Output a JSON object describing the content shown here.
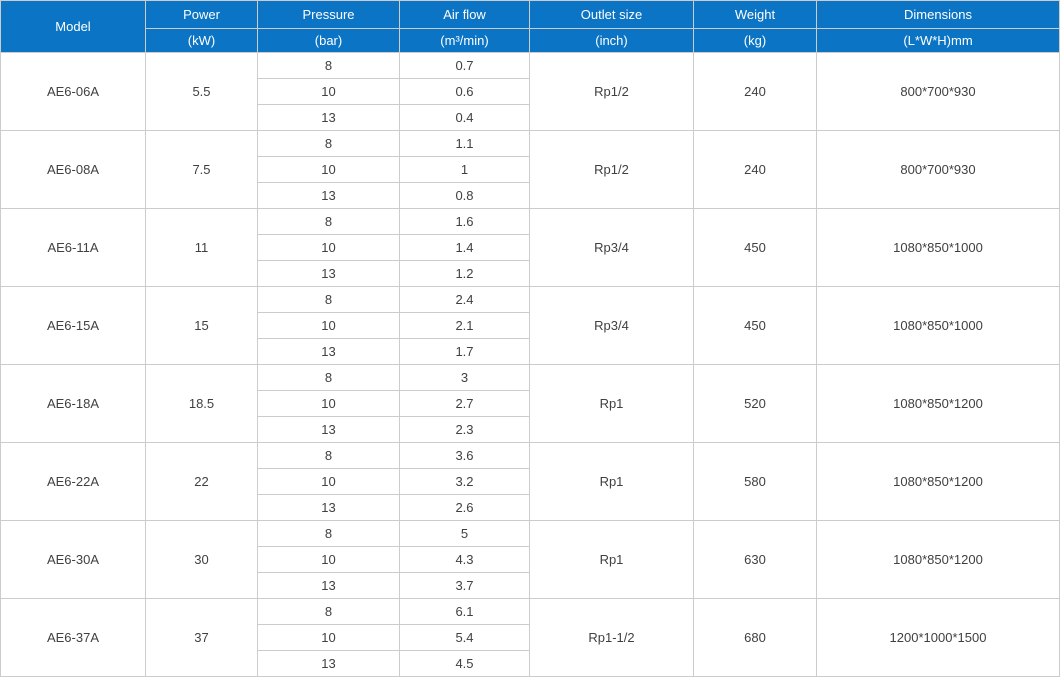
{
  "chart_data": {
    "type": "table",
    "columns": [
      "Model",
      "Power (kW)",
      "Pressure (bar)",
      "Air flow (m³/min)",
      "Outlet size (inch)",
      "Weight (kg)",
      "Dimensions (L*W*H)mm"
    ],
    "rows": [
      [
        "AE6-06A",
        "5.5",
        "8",
        "0.7",
        "Rp1/2",
        "240",
        "800*700*930"
      ],
      [
        "AE6-06A",
        "5.5",
        "10",
        "0.6",
        "Rp1/2",
        "240",
        "800*700*930"
      ],
      [
        "AE6-06A",
        "5.5",
        "13",
        "0.4",
        "Rp1/2",
        "240",
        "800*700*930"
      ],
      [
        "AE6-08A",
        "7.5",
        "8",
        "1.1",
        "Rp1/2",
        "240",
        "800*700*930"
      ],
      [
        "AE6-08A",
        "7.5",
        "10",
        "1",
        "Rp1/2",
        "240",
        "800*700*930"
      ],
      [
        "AE6-08A",
        "7.5",
        "13",
        "0.8",
        "Rp1/2",
        "240",
        "800*700*930"
      ],
      [
        "AE6-11A",
        "11",
        "8",
        "1.6",
        "Rp3/4",
        "450",
        "1080*850*1000"
      ],
      [
        "AE6-11A",
        "11",
        "10",
        "1.4",
        "Rp3/4",
        "450",
        "1080*850*1000"
      ],
      [
        "AE6-11A",
        "11",
        "13",
        "1.2",
        "Rp3/4",
        "450",
        "1080*850*1000"
      ],
      [
        "AE6-15A",
        "15",
        "8",
        "2.4",
        "Rp3/4",
        "450",
        "1080*850*1000"
      ],
      [
        "AE6-15A",
        "15",
        "10",
        "2.1",
        "Rp3/4",
        "450",
        "1080*850*1000"
      ],
      [
        "AE6-15A",
        "15",
        "13",
        "1.7",
        "Rp3/4",
        "450",
        "1080*850*1000"
      ],
      [
        "AE6-18A",
        "18.5",
        "8",
        "3",
        "Rp1",
        "520",
        "1080*850*1200"
      ],
      [
        "AE6-18A",
        "18.5",
        "10",
        "2.7",
        "Rp1",
        "520",
        "1080*850*1200"
      ],
      [
        "AE6-18A",
        "18.5",
        "13",
        "2.3",
        "Rp1",
        "520",
        "1080*850*1200"
      ],
      [
        "AE6-22A",
        "22",
        "8",
        "3.6",
        "Rp1",
        "580",
        "1080*850*1200"
      ],
      [
        "AE6-22A",
        "22",
        "10",
        "3.2",
        "Rp1",
        "580",
        "1080*850*1200"
      ],
      [
        "AE6-22A",
        "22",
        "13",
        "2.6",
        "Rp1",
        "580",
        "1080*850*1200"
      ],
      [
        "AE6-30A",
        "30",
        "8",
        "5",
        "Rp1",
        "630",
        "1080*850*1200"
      ],
      [
        "AE6-30A",
        "30",
        "10",
        "4.3",
        "Rp1",
        "630",
        "1080*850*1200"
      ],
      [
        "AE6-30A",
        "30",
        "13",
        "3.7",
        "Rp1",
        "630",
        "1080*850*1200"
      ],
      [
        "AE6-37A",
        "37",
        "8",
        "6.1",
        "Rp1-1/2",
        "680",
        "1200*1000*1500"
      ],
      [
        "AE6-37A",
        "37",
        "10",
        "5.4",
        "Rp1-1/2",
        "680",
        "1200*1000*1500"
      ],
      [
        "AE6-37A",
        "37",
        "13",
        "4.5",
        "Rp1-1/2",
        "680",
        "1200*1000*1500"
      ]
    ]
  },
  "table": {
    "header": {
      "model": "Model",
      "columns": [
        {
          "label": "Power",
          "unit": "(kW)"
        },
        {
          "label": "Pressure",
          "unit": "(bar)"
        },
        {
          "label": "Air flow",
          "unit": "(m³/min)"
        },
        {
          "label": "Outlet size",
          "unit": "(inch)"
        },
        {
          "label": "Weight",
          "unit": "(kg)"
        },
        {
          "label": "Dimensions",
          "unit": "(L*W*H)mm"
        }
      ]
    },
    "groups": [
      {
        "model": "AE6-06A",
        "power": "5.5",
        "outlet_size": "Rp1/2",
        "weight": "240",
        "dimensions": "800*700*930",
        "sub": [
          {
            "pressure": "8",
            "air_flow": "0.7"
          },
          {
            "pressure": "10",
            "air_flow": "0.6"
          },
          {
            "pressure": "13",
            "air_flow": "0.4"
          }
        ]
      },
      {
        "model": "AE6-08A",
        "power": "7.5",
        "outlet_size": "Rp1/2",
        "weight": "240",
        "dimensions": "800*700*930",
        "sub": [
          {
            "pressure": "8",
            "air_flow": "1.1"
          },
          {
            "pressure": "10",
            "air_flow": "1"
          },
          {
            "pressure": "13",
            "air_flow": "0.8"
          }
        ]
      },
      {
        "model": "AE6-11A",
        "power": "11",
        "outlet_size": "Rp3/4",
        "weight": "450",
        "dimensions": "1080*850*1000",
        "sub": [
          {
            "pressure": "8",
            "air_flow": "1.6"
          },
          {
            "pressure": "10",
            "air_flow": "1.4"
          },
          {
            "pressure": "13",
            "air_flow": "1.2"
          }
        ]
      },
      {
        "model": "AE6-15A",
        "power": "15",
        "outlet_size": "Rp3/4",
        "weight": "450",
        "dimensions": "1080*850*1000",
        "sub": [
          {
            "pressure": "8",
            "air_flow": "2.4"
          },
          {
            "pressure": "10",
            "air_flow": "2.1"
          },
          {
            "pressure": "13",
            "air_flow": "1.7"
          }
        ]
      },
      {
        "model": "AE6-18A",
        "power": "18.5",
        "outlet_size": "Rp1",
        "weight": "520",
        "dimensions": "1080*850*1200",
        "sub": [
          {
            "pressure": "8",
            "air_flow": "3"
          },
          {
            "pressure": "10",
            "air_flow": "2.7"
          },
          {
            "pressure": "13",
            "air_flow": "2.3"
          }
        ]
      },
      {
        "model": "AE6-22A",
        "power": "22",
        "outlet_size": "Rp1",
        "weight": "580",
        "dimensions": "1080*850*1200",
        "sub": [
          {
            "pressure": "8",
            "air_flow": "3.6"
          },
          {
            "pressure": "10",
            "air_flow": "3.2"
          },
          {
            "pressure": "13",
            "air_flow": "2.6"
          }
        ]
      },
      {
        "model": "AE6-30A",
        "power": "30",
        "outlet_size": "Rp1",
        "weight": "630",
        "dimensions": "1080*850*1200",
        "sub": [
          {
            "pressure": "8",
            "air_flow": "5"
          },
          {
            "pressure": "10",
            "air_flow": "4.3"
          },
          {
            "pressure": "13",
            "air_flow": "3.7"
          }
        ]
      },
      {
        "model": "AE6-37A",
        "power": "37",
        "outlet_size": "Rp1-1/2",
        "weight": "680",
        "dimensions": "1200*1000*1500",
        "sub": [
          {
            "pressure": "8",
            "air_flow": "6.1"
          },
          {
            "pressure": "10",
            "air_flow": "5.4"
          },
          {
            "pressure": "13",
            "air_flow": "4.5"
          }
        ]
      }
    ]
  },
  "colors": {
    "header_bg": "#0b74c4",
    "header_text": "#ffffff",
    "border": "#cccccc",
    "body_text": "#404040"
  }
}
